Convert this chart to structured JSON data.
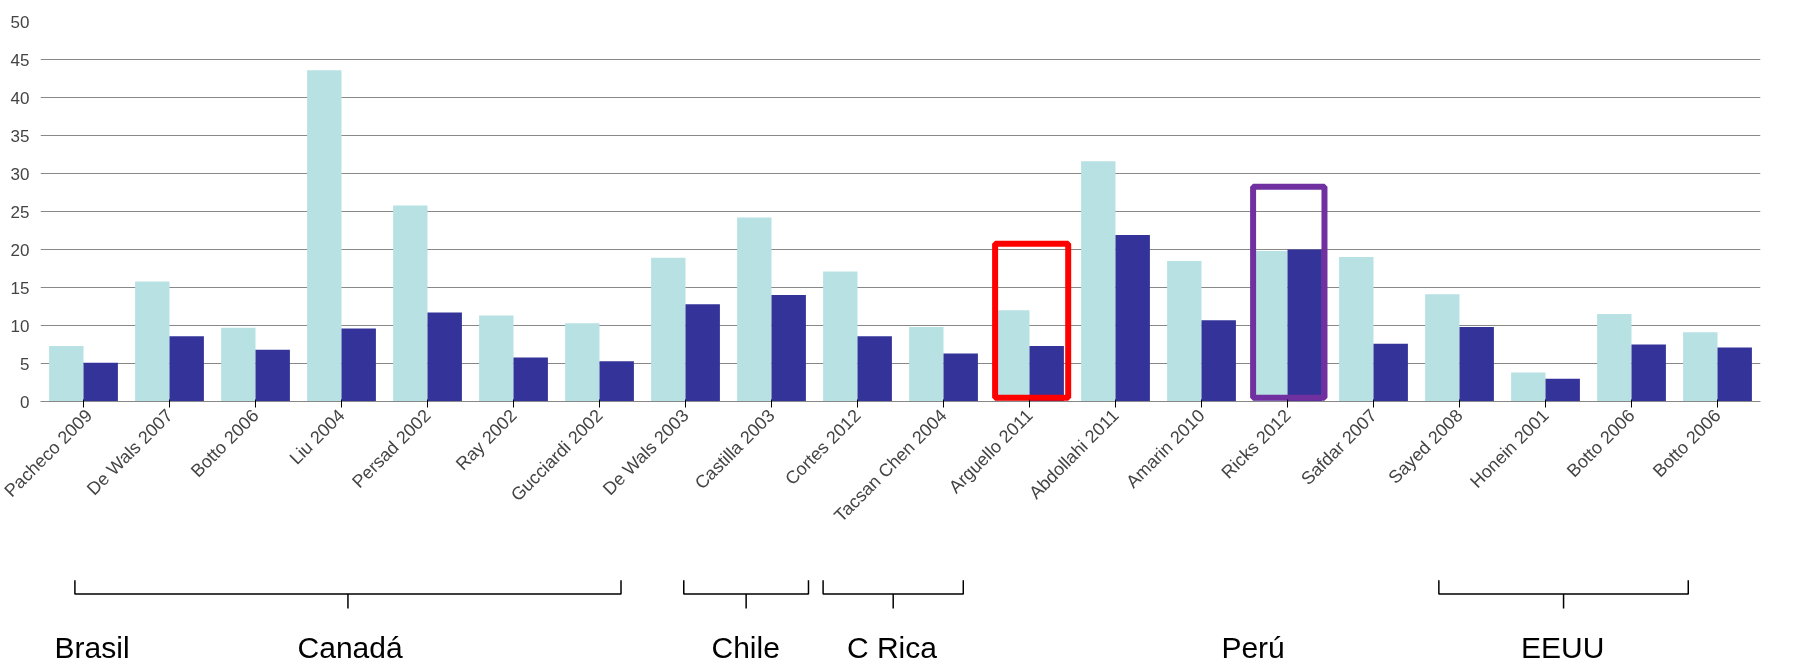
{
  "chart_data": {
    "type": "bar",
    "categories": [
      "Pacheco 2009",
      "De Wals 2007",
      "Botto 2006",
      "Liu 2004",
      "Persad 2002",
      "Ray 2002",
      "Gucciardi 2002",
      "De Wals 2003",
      "Castilla 2003",
      "Cortes 2012",
      "Tacsan Chen 2004",
      "Arguello 2011",
      "Abdollahi 2011",
      "Amarin 2010",
      "Ricks 2012",
      "Safdar 2007",
      "Sayed 2008",
      "Honein 2001",
      "Botto 2006",
      "Botto 2006"
    ],
    "series": [
      {
        "color": "#b7e1e3",
        "values": [
          7.3,
          15.8,
          9.7,
          43.6,
          25.8,
          11.3,
          10.3,
          18.9,
          24.2,
          17.1,
          9.8,
          12.0,
          31.6,
          18.5,
          19.8,
          19.0,
          14.1,
          3.8,
          11.5,
          9.1
        ]
      },
      {
        "color": "#333399",
        "values": [
          5.1,
          8.6,
          6.8,
          9.6,
          11.7,
          5.8,
          5.3,
          12.8,
          14.0,
          8.6,
          6.3,
          7.3,
          21.9,
          10.7,
          20.0,
          7.6,
          9.8,
          3.0,
          7.5,
          7.1
        ]
      }
    ],
    "ylim": [
      0,
      50
    ],
    "yticks": [
      0,
      5,
      10,
      15,
      20,
      25,
      30,
      35,
      40,
      45,
      50
    ],
    "grid": "y",
    "annotations": [
      "Brasil",
      "Canadá",
      "Chile",
      "C Rica",
      "Perú",
      "EEUU"
    ]
  }
}
